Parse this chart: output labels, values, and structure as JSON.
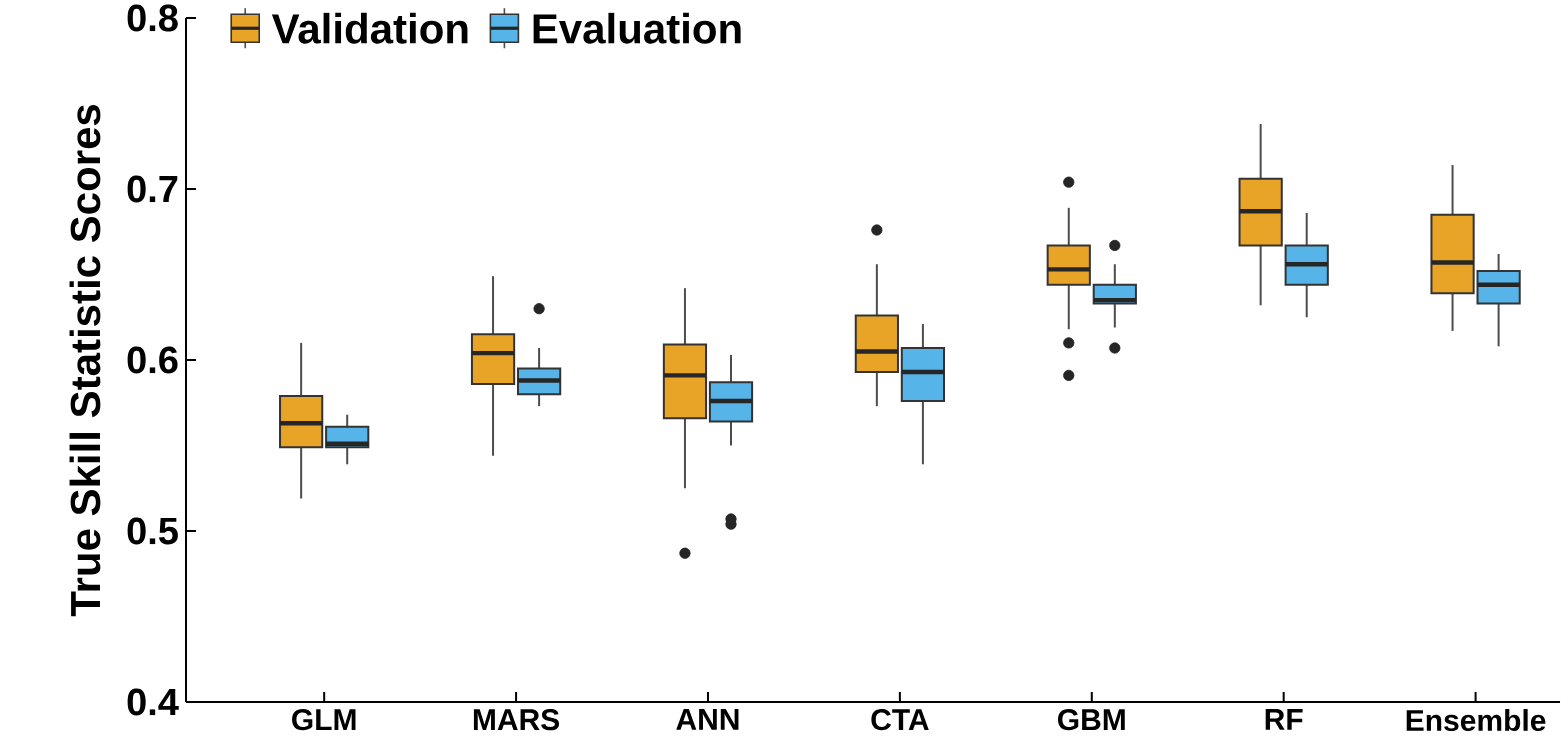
{
  "chart_data": {
    "type": "box",
    "ylabel": "True Skill Statistic Scores",
    "categories": [
      "GLM",
      "MARS",
      "ANN",
      "CTA",
      "GBM",
      "RF",
      "Ensemble"
    ],
    "ylim": [
      0.4,
      0.8
    ],
    "yticks": [
      0.4,
      0.5,
      0.6,
      0.7,
      0.8
    ],
    "legend": "top left",
    "series": [
      {
        "name": "Validation",
        "color": "#e8a427",
        "boxes": [
          {
            "low": 0.519,
            "q1": 0.549,
            "median": 0.563,
            "q3": 0.579,
            "high": 0.61
          },
          {
            "low": 0.544,
            "q1": 0.586,
            "median": 0.604,
            "q3": 0.615,
            "high": 0.649
          },
          {
            "low": 0.525,
            "q1": 0.566,
            "median": 0.591,
            "q3": 0.609,
            "high": 0.642,
            "outliers": [
              0.487
            ]
          },
          {
            "low": 0.573,
            "q1": 0.593,
            "median": 0.605,
            "q3": 0.626,
            "high": 0.656,
            "outliers": [
              0.676
            ]
          },
          {
            "low": 0.618,
            "q1": 0.644,
            "median": 0.653,
            "q3": 0.667,
            "high": 0.689,
            "outliers": [
              0.704,
              0.61,
              0.591
            ]
          },
          {
            "low": 0.632,
            "q1": 0.667,
            "median": 0.687,
            "q3": 0.706,
            "high": 0.738
          },
          {
            "low": 0.617,
            "q1": 0.639,
            "median": 0.657,
            "q3": 0.685,
            "high": 0.714
          }
        ]
      },
      {
        "name": "Evaluation",
        "color": "#56b4e9",
        "boxes": [
          {
            "low": 0.539,
            "q1": 0.549,
            "median": 0.551,
            "q3": 0.561,
            "high": 0.568
          },
          {
            "low": 0.573,
            "q1": 0.58,
            "median": 0.588,
            "q3": 0.595,
            "high": 0.607,
            "outliers": [
              0.63
            ]
          },
          {
            "low": 0.55,
            "q1": 0.564,
            "median": 0.576,
            "q3": 0.587,
            "high": 0.603,
            "outliers": [
              0.504,
              0.507
            ]
          },
          {
            "low": 0.539,
            "q1": 0.576,
            "median": 0.593,
            "q3": 0.607,
            "high": 0.621
          },
          {
            "low": 0.619,
            "q1": 0.633,
            "median": 0.635,
            "q3": 0.644,
            "high": 0.656,
            "outliers": [
              0.667,
              0.607
            ]
          },
          {
            "low": 0.625,
            "q1": 0.644,
            "median": 0.656,
            "q3": 0.667,
            "high": 0.686
          },
          {
            "low": 0.608,
            "q1": 0.633,
            "median": 0.644,
            "q3": 0.652,
            "high": 0.662
          }
        ]
      }
    ]
  }
}
